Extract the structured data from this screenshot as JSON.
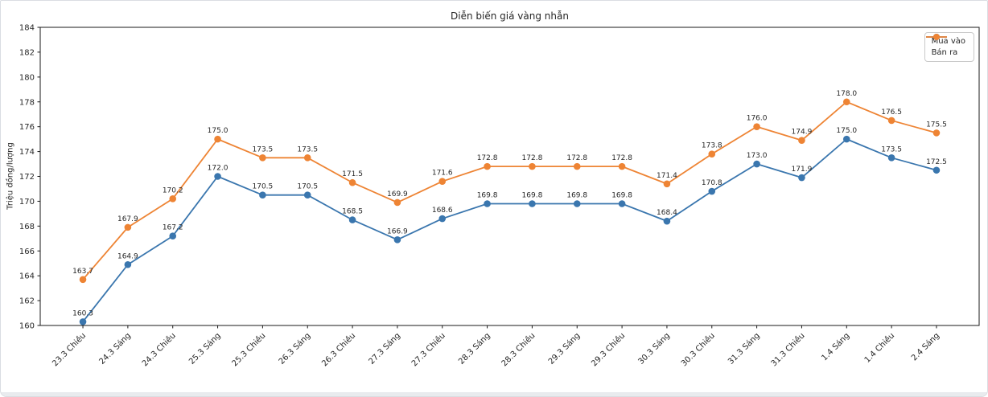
{
  "chart_data": {
    "type": "line",
    "title": "Diễn biến giá vàng nhẫn",
    "xlabel": "",
    "ylabel": "Triệu đồng/lượng",
    "ylim": [
      160,
      184
    ],
    "ytick_step": 2,
    "grid": false,
    "legend_position": "upper right",
    "point_labels": "one_decimal",
    "categories": [
      "23.3 Chiều",
      "24.3 Sáng",
      "24.3 Chiều",
      "25.3 Sáng",
      "25.3 Chiều",
      "26.3 Sáng",
      "26.3 Chiều",
      "27.3 Sáng",
      "27.3 Chiều",
      "28.3 Sáng",
      "28.3 Chiều",
      "29.3 Sáng",
      "29.3 Chiều",
      "30.3 Sáng",
      "30.3 Chiều",
      "31.3 Sáng",
      "31.3 Chiều",
      "1.4 Sáng",
      "1.4 Chiều",
      "2.4 Sáng"
    ],
    "series": [
      {
        "name": "Mua vào",
        "color": "#3a76ae",
        "values": [
          160.3,
          164.9,
          167.2,
          172.0,
          170.5,
          170.5,
          168.5,
          166.9,
          168.6,
          169.8,
          169.8,
          169.8,
          169.8,
          168.4,
          170.8,
          173.0,
          171.9,
          175.0,
          173.5,
          172.5
        ]
      },
      {
        "name": "Bán ra",
        "color": "#ee8434",
        "values": [
          163.7,
          167.9,
          170.2,
          175.0,
          173.5,
          173.5,
          171.5,
          169.9,
          171.6,
          172.8,
          172.8,
          172.8,
          172.8,
          171.4,
          173.8,
          176.0,
          174.9,
          178.0,
          176.5,
          175.5
        ]
      }
    ],
    "colors": {
      "spine": "#1a1a1a",
      "tick_text": "#262626",
      "point_label_text": "#262626"
    }
  }
}
